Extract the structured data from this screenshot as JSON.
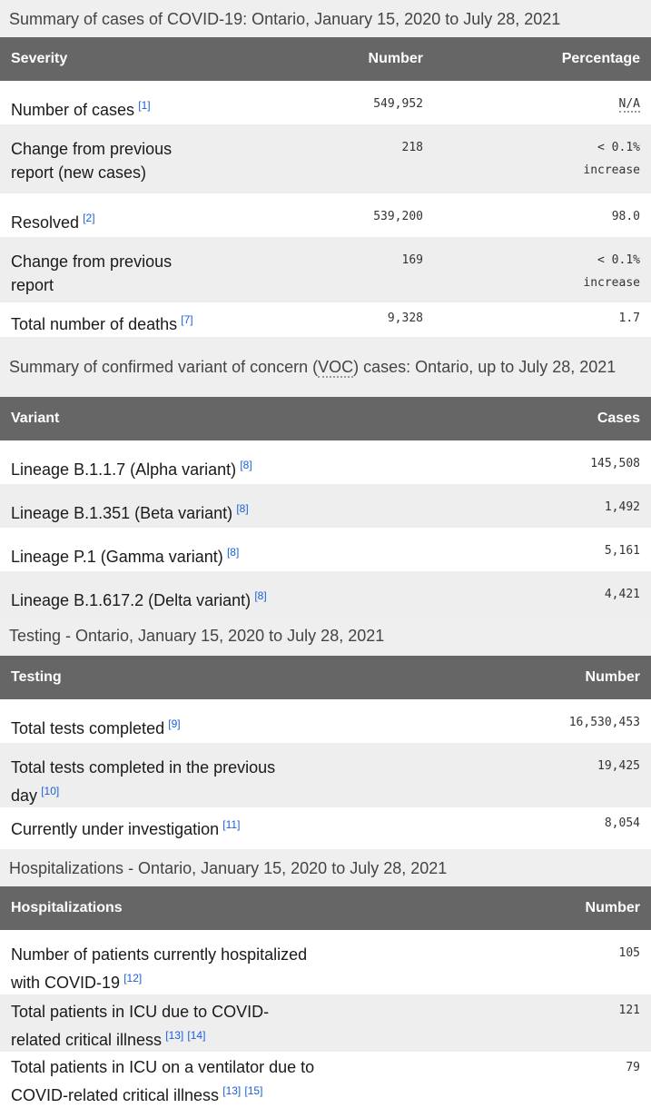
{
  "tables": [
    {
      "caption": "Summary of cases of COVID-19: Ontario, January 15, 2020 to July 28, 2021",
      "headers": [
        "Severity",
        "Number",
        "Percentage"
      ],
      "rows": [
        {
          "label": "Number of cases",
          "refs": [
            "[1]"
          ],
          "values": [
            "549,952",
            "N/A"
          ]
        },
        {
          "label": "Change from previous report (new cases)",
          "refs": [],
          "values": [
            "218",
            "< 0.1%"
          ],
          "sub": "increase"
        },
        {
          "label": "Resolved",
          "refs": [
            "[2]"
          ],
          "values": [
            "539,200",
            "98.0"
          ]
        },
        {
          "label": "Change from previous report",
          "refs": [],
          "values": [
            "169",
            "< 0.1%"
          ],
          "sub": "increase"
        },
        {
          "label": "Total number of deaths",
          "refs": [
            "[7]"
          ],
          "values": [
            "9,328",
            "1.7"
          ]
        }
      ]
    },
    {
      "caption_pre": "Summary of confirmed variant of concern (",
      "caption_abbr": "VOC",
      "caption_post": ") cases: Ontario, up to July 28, 2021",
      "headers": [
        "Variant",
        "Cases"
      ],
      "rows": [
        {
          "label": "Lineage B.1.1.7 (Alpha variant)",
          "refs": [
            "[8]"
          ],
          "values": [
            "145,508"
          ]
        },
        {
          "label": "Lineage B.1.351 (Beta variant)",
          "refs": [
            "[8]"
          ],
          "values": [
            "1,492"
          ]
        },
        {
          "label": "Lineage P.1 (Gamma variant)",
          "refs": [
            "[8]"
          ],
          "values": [
            "5,161"
          ]
        },
        {
          "label": "Lineage B.1.617.2 (Delta variant)",
          "refs": [
            "[8]"
          ],
          "values": [
            "4,421"
          ]
        }
      ]
    },
    {
      "caption": "Testing - Ontario, January 15, 2020 to July 28, 2021",
      "headers": [
        "Testing",
        "Number"
      ],
      "rows": [
        {
          "label": "Total tests completed",
          "refs": [
            "[9]"
          ],
          "values": [
            "16,530,453"
          ]
        },
        {
          "label": "Total tests completed in the previous day",
          "refs": [
            "[10]"
          ],
          "values": [
            "19,425"
          ]
        },
        {
          "label": "Currently under investigation",
          "refs": [
            "[11]"
          ],
          "values": [
            "8,054"
          ]
        }
      ]
    },
    {
      "caption": "Hospitalizations - Ontario, January 15, 2020 to July 28, 2021",
      "headers": [
        "Hospitalizations",
        "Number"
      ],
      "rows": [
        {
          "label": "Number of patients currently hospitalized with COVID-19",
          "refs": [
            "[12]"
          ],
          "values": [
            "105"
          ]
        },
        {
          "label": "Total patients in ICU due to COVID-related critical illness",
          "refs": [
            "[13]",
            "[14]"
          ],
          "values": [
            "121"
          ]
        },
        {
          "label": "Total patients in ICU on a ventilator due to COVID-related critical illness",
          "refs": [
            "[13]",
            "[15]"
          ],
          "values": [
            "79"
          ]
        }
      ]
    }
  ]
}
